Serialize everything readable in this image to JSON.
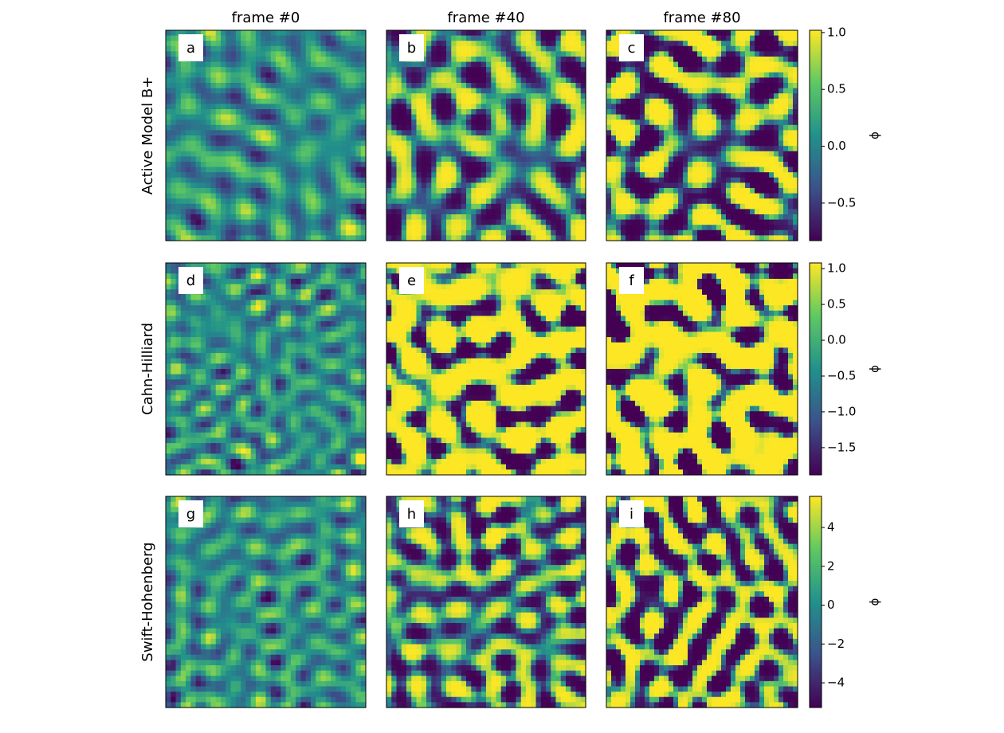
{
  "column_titles": [
    "frame #0",
    "frame #40",
    "frame #80"
  ],
  "row_labels": [
    "Active Model B+",
    "Cahn-Hilliard",
    "Swift-Hohenberg"
  ],
  "panels": [
    [
      "a",
      "b",
      "c"
    ],
    [
      "d",
      "e",
      "f"
    ],
    [
      "g",
      "h",
      "i"
    ]
  ],
  "colorbars": [
    {
      "label": "ϕ",
      "lim": [
        -0.83,
        1.02
      ],
      "ticks": [
        {
          "value": 1.0,
          "label": "1.0"
        },
        0.5,
        {
          "value": 0.0,
          "label": "0.0"
        },
        {
          "value": -0.5,
          "label": "−0.5"
        }
      ]
    },
    {
      "label": "ϕ",
      "lim": [
        -1.88,
        1.08
      ],
      "ticks": [
        {
          "value": 1.0,
          "label": "1.0"
        },
        0.5,
        {
          "value": 0.0,
          "label": "0.0"
        },
        {
          "value": -0.5,
          "label": "−0.5"
        },
        {
          "value": -1.0,
          "label": "−1.0"
        },
        {
          "value": -1.5,
          "label": "−1.5"
        }
      ]
    },
    {
      "label": "ϕ",
      "lim": [
        -5.27,
        5.6
      ],
      "ticks": [
        4,
        2,
        0,
        {
          "value": -2,
          "label": "−2"
        },
        {
          "value": -4,
          "label": "−4"
        }
      ]
    }
  ]
}
